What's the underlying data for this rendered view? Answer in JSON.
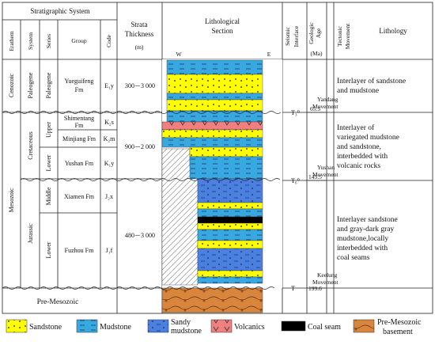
{
  "header": {
    "stratigraphic_system": "Stratigraphic System",
    "erathem": "Erathem",
    "system": "System",
    "series": "Series",
    "group": "Group",
    "code": "Code",
    "strata_thickness_1": "Strata",
    "strata_thickness_2": "Thickness",
    "strata_thickness_unit": "(m)",
    "litho_section_1": "Lithological",
    "litho_section_2": "Section",
    "seismic_1": "Seismic",
    "seismic_2": "Interface",
    "geologic_age_1": "Geologic",
    "geologic_age_2": "Age",
    "geologic_age_unit": "(Ma)",
    "tectonic_1": "Tectonic",
    "tectonic_2": "Movement",
    "lithology": "Lithology",
    "west": "W",
    "east": "E"
  },
  "erathems": {
    "cenozoic": "Cenozoic",
    "mesozoic": "Mesozoic",
    "pre": "Pre-Mesozoic"
  },
  "systems": {
    "paleogene": "Paleogene",
    "cretaceous": "Cretaceous",
    "jurassic": "Jurassic"
  },
  "series": {
    "paleogene": "Paleogene",
    "upper": "Upper",
    "lower_k": "Lower",
    "middle": "Middle",
    "lower_j": "Lower"
  },
  "groups": {
    "yueguifeng_1": "Yueguifeng",
    "yueguifeng_2": "Fm",
    "shimentang_1": "Shimentang",
    "shimentang_2": "Fm",
    "minjiang": "Minjiang Fm",
    "yushan": "Yushan Fm",
    "xiamen": "Xiamen Fm",
    "fuzhou": "Fuzhou Fm"
  },
  "codes": {
    "e1y": "E₁y",
    "k2s": "K₂s",
    "k2m": "K₂m",
    "k1y": "K₁y",
    "j2x": "J₂x",
    "j1f": "J₁f"
  },
  "thickness": {
    "cenozoic": "300－3 000",
    "cretaceous": "900－2 000",
    "jurassic": "480－3 000"
  },
  "seismic": {
    "t3": "T₃⁰",
    "t6": "T₆⁰",
    "tg": "T"
  },
  "ages": {
    "a1": "65.5",
    "a2": "145.5",
    "a3": "199.6"
  },
  "tectonic": {
    "yandang_1": "Yandang",
    "yandang_2": "Movement",
    "yushan_1": "Yushan",
    "yushan_2": "Movement",
    "keelung_1": "Keelung",
    "keelung_2": "Movement"
  },
  "lithology": {
    "cenozoic_1": "Interlayer of sandstone",
    "cenozoic_2": "and mudstone",
    "cretaceous_1": "Interlayer of",
    "cretaceous_2": "variegated mudstone",
    "cretaceous_3": "and sandstone,",
    "cretaceous_4": "interbedded with",
    "cretaceous_5": "volcanic rocks",
    "jurassic_1": "Interlayer sandstone",
    "jurassic_2": "and  gray-dark gray",
    "jurassic_3": "mudstone,locally",
    "jurassic_4": "interbedded with",
    "jurassic_5": "coal seams"
  },
  "legend": {
    "sandstone": "Sandstone",
    "mudstone": "Mudstone",
    "sandy_1": "Sandy",
    "sandy_2": "mudstone",
    "volcanics": "Volcanics",
    "coal": "Coal seam",
    "pre_1": "Pre-Mesozoic",
    "pre_2": "basement"
  },
  "colors": {
    "sandstone": "#FFFF00",
    "mudstone": "#38A8E0",
    "sandy_mudstone": "#4A80E0",
    "volcanics": "#F08080",
    "coal": "#000000",
    "basement": "#D9863C"
  }
}
